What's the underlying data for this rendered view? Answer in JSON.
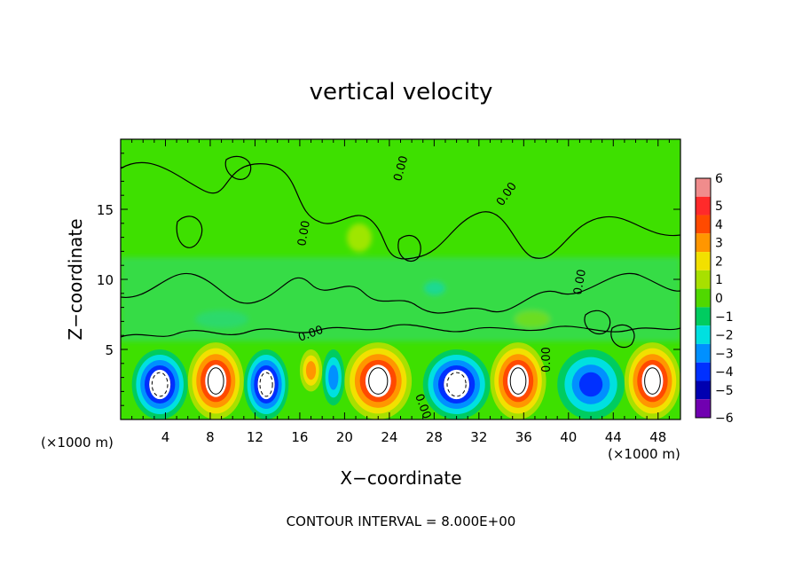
{
  "chart_data": {
    "type": "heatmap",
    "title": "vertical velocity",
    "xlabel": "X−coordinate",
    "ylabel": "Z−coordinate",
    "x_unit_left": "(×1000 m)",
    "x_unit_right": "(×1000 m)",
    "footer": "CONTOUR INTERVAL = 8.000E+00",
    "xlim": [
      0,
      50
    ],
    "ylim": [
      0,
      20
    ],
    "x_ticks": [
      "4",
      "8",
      "12",
      "16",
      "20",
      "24",
      "28",
      "32",
      "36",
      "40",
      "44",
      "48"
    ],
    "x_tick_values": [
      4,
      8,
      12,
      16,
      20,
      24,
      28,
      32,
      36,
      40,
      44,
      48
    ],
    "y_ticks": [
      "5",
      "10",
      "15"
    ],
    "y_tick_values": [
      5,
      10,
      15
    ],
    "colorbar": {
      "levels": [
        "6",
        "5",
        "4",
        "3",
        "2",
        "1",
        "0",
        "−1",
        "−2",
        "−3",
        "−4",
        "−5",
        "−6"
      ],
      "level_values": [
        6,
        5,
        4,
        3,
        2,
        1,
        0,
        -1,
        -2,
        -3,
        -4,
        -5,
        -6
      ],
      "colors": [
        "#f08c8c",
        "#ff2a2a",
        "#ff4a00",
        "#ff9600",
        "#f2e000",
        "#a8e000",
        "#50d800",
        "#00cc60",
        "#00e0e0",
        "#0090ff",
        "#0030ff",
        "#0000b0",
        "#7000b0"
      ]
    },
    "contour_label": "0.00",
    "cells": [
      {
        "x": [
          1,
          6
        ],
        "z": [
          0,
          5
        ],
        "value": -6
      },
      {
        "x": [
          6,
          11
        ],
        "z": [
          0,
          5.5
        ],
        "value": 6
      },
      {
        "x": [
          11,
          15
        ],
        "z": [
          0,
          5
        ],
        "value": -6
      },
      {
        "x": [
          16,
          18
        ],
        "z": [
          2,
          5
        ],
        "value": 3
      },
      {
        "x": [
          18,
          20
        ],
        "z": [
          1,
          5
        ],
        "value": -3
      },
      {
        "x": [
          20,
          26
        ],
        "z": [
          0,
          5.5
        ],
        "value": 6
      },
      {
        "x": [
          27,
          33
        ],
        "z": [
          0,
          5
        ],
        "value": -6
      },
      {
        "x": [
          33,
          38
        ],
        "z": [
          0,
          5.5
        ],
        "value": 6
      },
      {
        "x": [
          39,
          45
        ],
        "z": [
          0,
          5
        ],
        "value": -4
      },
      {
        "x": [
          45,
          50
        ],
        "z": [
          0,
          5.5
        ],
        "value": 6
      }
    ]
  }
}
